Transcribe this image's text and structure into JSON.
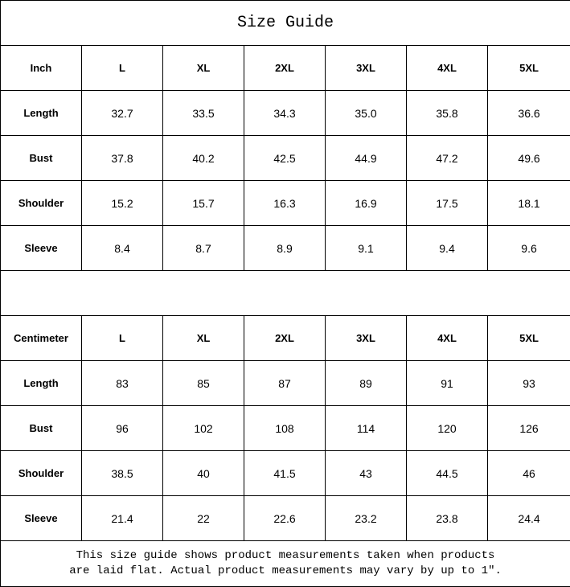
{
  "title": "Size Guide",
  "tables": [
    {
      "unit": "Inch",
      "sizes": [
        "L",
        "XL",
        "2XL",
        "3XL",
        "4XL",
        "5XL"
      ],
      "rows": [
        {
          "label": "Length",
          "values": [
            "32.7",
            "33.5",
            "34.3",
            "35.0",
            "35.8",
            "36.6"
          ]
        },
        {
          "label": "Bust",
          "values": [
            "37.8",
            "40.2",
            "42.5",
            "44.9",
            "47.2",
            "49.6"
          ]
        },
        {
          "label": "Shoulder",
          "values": [
            "15.2",
            "15.7",
            "16.3",
            "16.9",
            "17.5",
            "18.1"
          ]
        },
        {
          "label": "Sleeve",
          "values": [
            "8.4",
            "8.7",
            "8.9",
            "9.1",
            "9.4",
            "9.6"
          ]
        }
      ]
    },
    {
      "unit": "Centimeter",
      "sizes": [
        "L",
        "XL",
        "2XL",
        "3XL",
        "4XL",
        "5XL"
      ],
      "rows": [
        {
          "label": "Length",
          "values": [
            "83",
            "85",
            "87",
            "89",
            "91",
            "93"
          ]
        },
        {
          "label": "Bust",
          "values": [
            "96",
            "102",
            "108",
            "114",
            "120",
            "126"
          ]
        },
        {
          "label": "Shoulder",
          "values": [
            "38.5",
            "40",
            "41.5",
            "43",
            "44.5",
            "46"
          ]
        },
        {
          "label": "Sleeve",
          "values": [
            "21.4",
            "22",
            "22.6",
            "23.2",
            "23.8",
            "24.4"
          ]
        }
      ]
    }
  ],
  "note": {
    "line1": "This size guide shows product measurements taken when products",
    "line2": "are laid flat. Actual product measurements may vary by up to 1″."
  }
}
